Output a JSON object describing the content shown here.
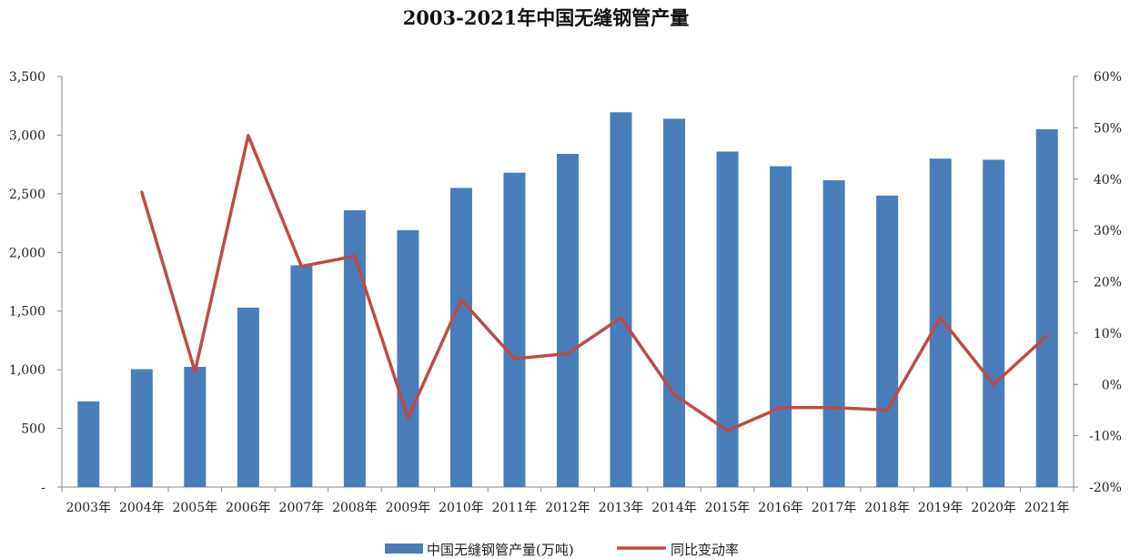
{
  "chart_data": {
    "type": "bar",
    "title": "2003-2021年中国无缝钢管产量",
    "categories": [
      "2003年",
      "2004年",
      "2005年",
      "2006年",
      "2007年",
      "2008年",
      "2009年",
      "2010年",
      "2011年",
      "2012年",
      "2013年",
      "2014年",
      "2015年",
      "2016年",
      "2017年",
      "2018年",
      "2019年",
      "2020年",
      "2021年"
    ],
    "left_axis": {
      "range": [
        0,
        3500
      ],
      "ticks": [
        0,
        500,
        1000,
        1500,
        2000,
        2500,
        3000,
        3500
      ],
      "tick_labels": [
        "-",
        "500",
        "1,000",
        "1,500",
        "2,000",
        "2,500",
        "3,000",
        "3,500"
      ]
    },
    "right_axis": {
      "range": [
        -20,
        60
      ],
      "ticks": [
        -20,
        -10,
        0,
        10,
        20,
        30,
        40,
        50,
        60
      ],
      "tick_labels": [
        "-20%",
        "-10%",
        "0%",
        "10%",
        "20%",
        "30%",
        "40%",
        "50%",
        "60%"
      ]
    },
    "series": [
      {
        "name": "中国无缝钢管产量(万吨)",
        "type": "bar",
        "axis": "left",
        "color": "#4a7ebb",
        "values": [
          730,
          1005,
          1025,
          1530,
          1890,
          2360,
          2190,
          2550,
          2680,
          2840,
          3195,
          3140,
          2860,
          2735,
          2615,
          2485,
          2800,
          2790,
          3050
        ]
      },
      {
        "name": "同比变动率",
        "type": "line",
        "axis": "right",
        "color": "#be4b48",
        "values": [
          null,
          37.5,
          2.5,
          48.5,
          23.0,
          25.0,
          -6.5,
          16.5,
          5.0,
          6.0,
          13.0,
          -2.0,
          -9.0,
          -4.5,
          -4.5,
          -5.0,
          13.0,
          0.0,
          9.5
        ]
      }
    ],
    "legend_position": "bottom",
    "grid": false
  }
}
